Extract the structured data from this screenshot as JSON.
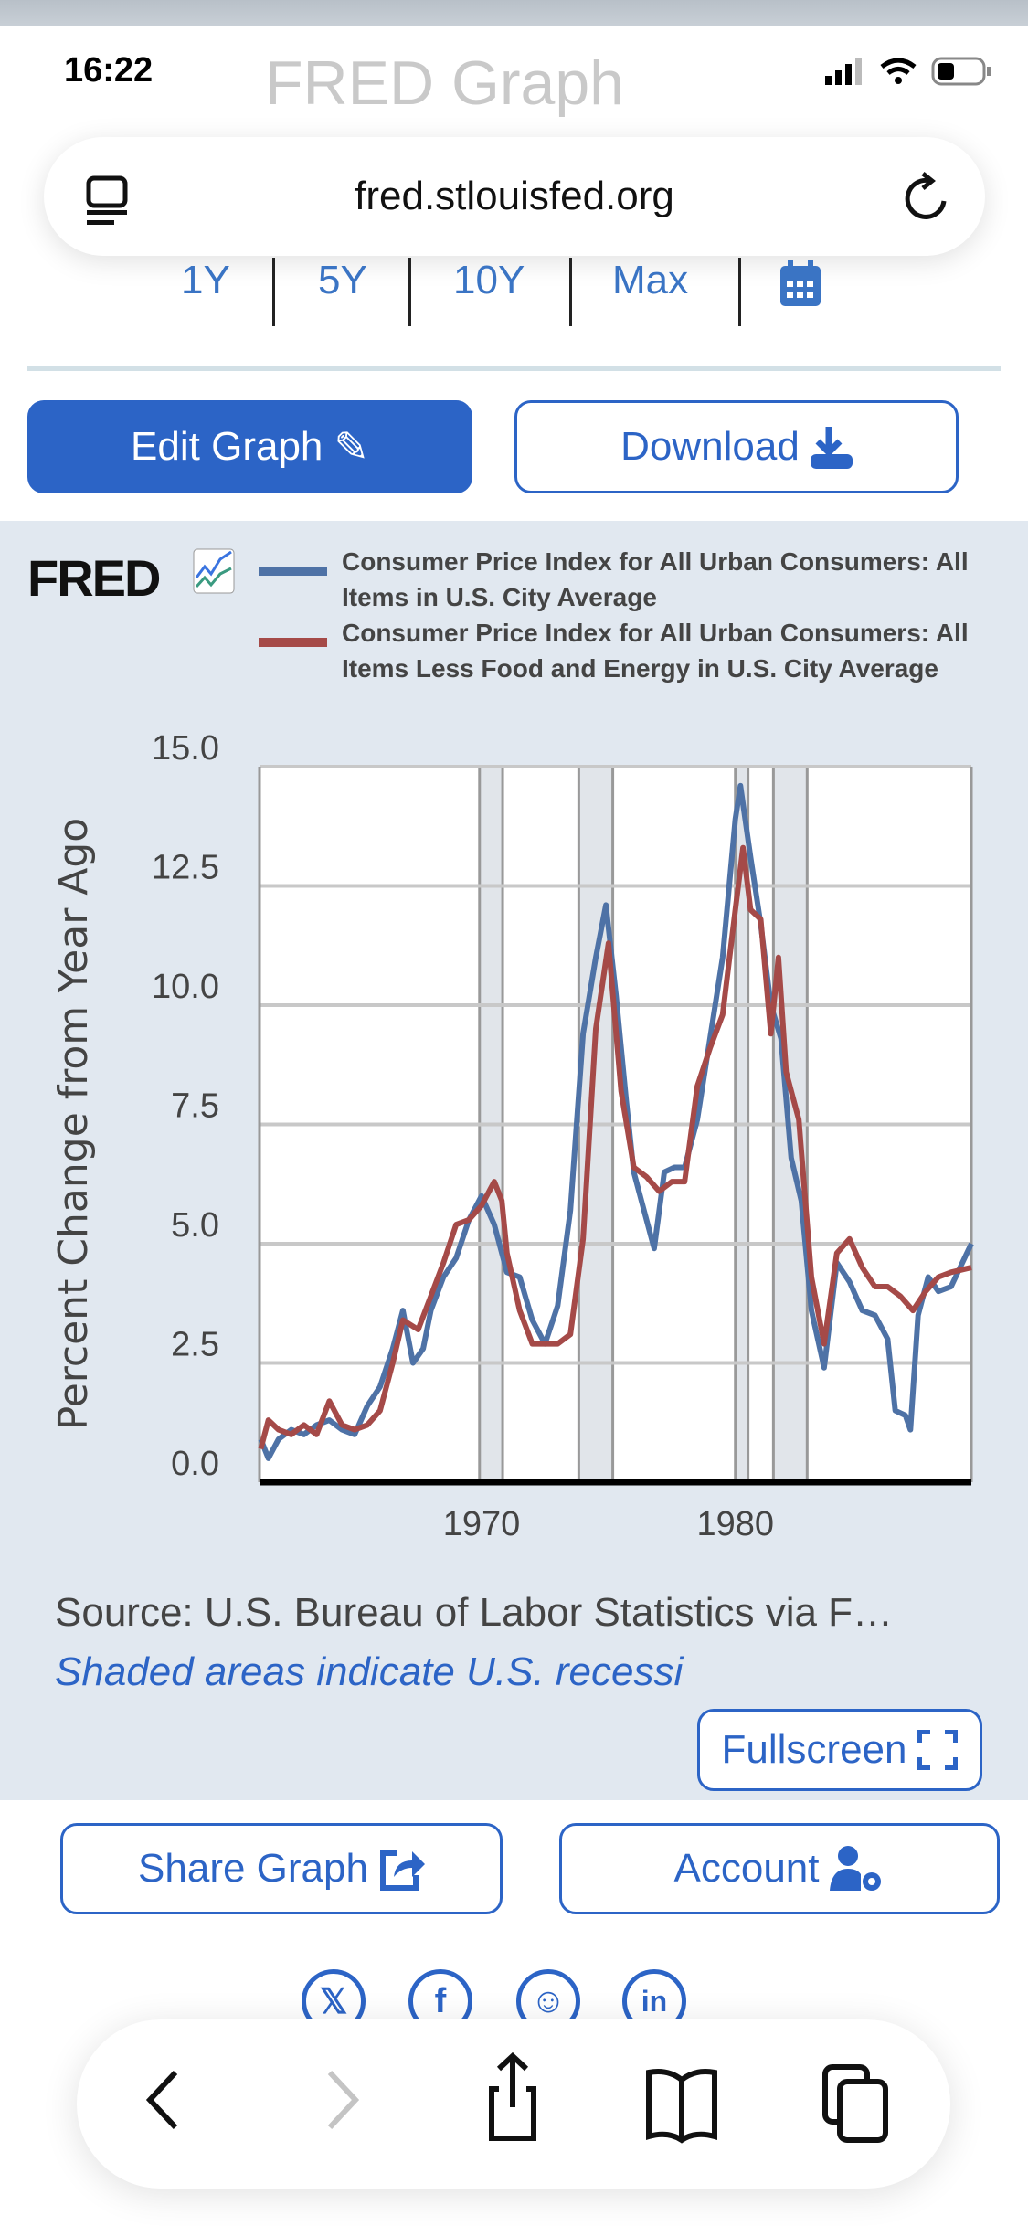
{
  "status_bar": {
    "time": "16:22"
  },
  "page": {
    "background_title": "FRED Graph"
  },
  "browser": {
    "url": "fred.stlouisfed.org"
  },
  "date_range": {
    "options": [
      "1Y",
      "5Y",
      "10Y",
      "Max"
    ],
    "calendar_icon": "calendar-icon"
  },
  "actions": {
    "edit_label": "Edit Graph",
    "download_label": "Download",
    "share_label": "Share Graph",
    "account_label": "Account",
    "fullscreen_label": "Fullscreen"
  },
  "graph": {
    "logo": "FRED",
    "source": "Source: U.S. Bureau of Labor Statistics via F…",
    "shaded_note": "Shaded areas indicate U.S. recessi"
  },
  "colors": {
    "accent": "#2c64c6",
    "series1": "#4e72a6",
    "series2": "#a54a48",
    "band": "#e1e8f0"
  },
  "chart_data": {
    "type": "line",
    "ylabel": "Percent Change from Year Ago",
    "ylim": [
      0,
      15
    ],
    "xlim": [
      1961.25,
      1989.3
    ],
    "yticks": [
      "0.0",
      "2.5",
      "5.0",
      "7.5",
      "10.0",
      "12.5",
      "15.0"
    ],
    "xticks": [
      "1970",
      "1980"
    ],
    "grid": true,
    "legend": "top",
    "recessions": [
      [
        1969.92,
        1970.83
      ],
      [
        1973.83,
        1975.17
      ],
      [
        1980.0,
        1980.5
      ],
      [
        1981.5,
        1982.83
      ]
    ],
    "series": [
      {
        "name": "Consumer Price Index for All Urban Consumers: All Items in U.S. City Average",
        "color": "#4e72a6",
        "x": [
          1961.3,
          1961.6,
          1962,
          1962.5,
          1963,
          1963.5,
          1964,
          1964.5,
          1965,
          1965.5,
          1966,
          1966.5,
          1966.9,
          1967.3,
          1967.7,
          1968,
          1968.5,
          1969,
          1969.5,
          1970,
          1970.5,
          1971,
          1971.5,
          1972,
          1972.5,
          1973,
          1973.5,
          1974,
          1974.5,
          1974.9,
          1975.3,
          1975.7,
          1976,
          1976.5,
          1976.8,
          1977.2,
          1977.6,
          1978,
          1978.5,
          1979,
          1979.5,
          1980,
          1980.2,
          1980.6,
          1981,
          1981.4,
          1981.8,
          1982.2,
          1982.6,
          1983,
          1983.5,
          1984,
          1984.5,
          1985,
          1985.5,
          1986,
          1986.3,
          1986.7,
          1986.9,
          1987.2,
          1987.6,
          1988,
          1988.5,
          1989.3
        ],
        "y": [
          0.9,
          0.5,
          0.9,
          1.1,
          1.0,
          1.2,
          1.3,
          1.1,
          1.0,
          1.6,
          2.0,
          2.8,
          3.6,
          2.5,
          2.8,
          3.6,
          4.3,
          4.7,
          5.5,
          6.0,
          5.4,
          4.4,
          4.3,
          3.4,
          2.9,
          3.7,
          5.7,
          9.4,
          11.0,
          12.1,
          10.2,
          8.0,
          6.5,
          5.5,
          4.9,
          6.5,
          6.6,
          6.6,
          7.6,
          9.3,
          11.0,
          13.9,
          14.6,
          13.1,
          11.7,
          10.0,
          9.3,
          6.8,
          5.9,
          3.6,
          2.4,
          4.6,
          4.2,
          3.6,
          3.5,
          3.0,
          1.5,
          1.4,
          1.1,
          3.5,
          4.3,
          4.0,
          4.1,
          5.0
        ]
      },
      {
        "name": "Consumer Price Index for All Urban Consumers: All Items Less Food and Energy in U.S. City Average",
        "color": "#a54a48",
        "x": [
          1961.3,
          1961.6,
          1962,
          1962.5,
          1963,
          1963.5,
          1964,
          1964.5,
          1965,
          1965.5,
          1966,
          1966.5,
          1966.9,
          1967.5,
          1968,
          1968.5,
          1969,
          1969.5,
          1970,
          1970.5,
          1970.8,
          1971,
          1971.5,
          1972,
          1972.5,
          1973,
          1973.5,
          1974,
          1974.5,
          1975,
          1975.5,
          1976,
          1976.5,
          1977,
          1977.5,
          1978,
          1978.5,
          1979,
          1979.5,
          1980,
          1980.3,
          1980.6,
          1981,
          1981.4,
          1981.7,
          1982,
          1982.5,
          1983,
          1983.5,
          1984,
          1984.5,
          1985,
          1985.5,
          1986,
          1986.5,
          1987,
          1987.5,
          1988,
          1988.5,
          1989.3
        ],
        "y": [
          0.7,
          1.3,
          1.1,
          1.0,
          1.2,
          1.0,
          1.7,
          1.2,
          1.1,
          1.2,
          1.5,
          2.5,
          3.4,
          3.2,
          3.9,
          4.6,
          5.4,
          5.5,
          5.8,
          6.3,
          5.9,
          4.8,
          3.6,
          2.9,
          2.9,
          2.9,
          3.1,
          5.1,
          9.5,
          11.3,
          8.2,
          6.6,
          6.4,
          6.1,
          6.3,
          6.3,
          8.3,
          9.1,
          9.8,
          12.0,
          13.3,
          12.0,
          11.8,
          9.4,
          11.0,
          8.6,
          7.6,
          4.3,
          2.9,
          4.8,
          5.1,
          4.5,
          4.1,
          4.1,
          3.9,
          3.6,
          4.0,
          4.3,
          4.4,
          4.5
        ]
      }
    ]
  }
}
